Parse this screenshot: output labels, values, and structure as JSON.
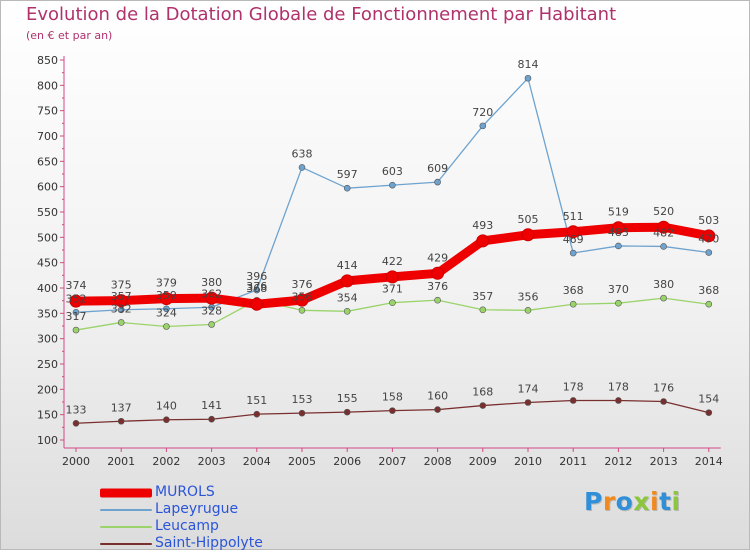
{
  "chart_data": {
    "type": "line",
    "title": "Evolution de la Dotation Globale de Fonctionnement par Habitant",
    "subtitle": "(en € et par an)",
    "xlabel": "",
    "ylabel": "",
    "x": [
      "2000",
      "2001",
      "2002",
      "2003",
      "2004",
      "2005",
      "2006",
      "2007",
      "2008",
      "2009",
      "2010",
      "2011",
      "2012",
      "2013",
      "2014"
    ],
    "ylim": [
      100,
      850
    ],
    "yticks": [
      100,
      150,
      200,
      250,
      300,
      350,
      400,
      450,
      500,
      550,
      600,
      650,
      700,
      750,
      800,
      850
    ],
    "grid": false,
    "legend_position": "bottom-left",
    "series": [
      {
        "name": "MUROLS",
        "color": "#ee0000",
        "values": [
          374,
          375,
          379,
          380,
          368,
          376,
          414,
          422,
          429,
          493,
          505,
          511,
          519,
          520,
          503
        ]
      },
      {
        "name": "Lapeyrugue",
        "color": "#6ea3cf",
        "values": [
          352,
          357,
          359,
          362,
          396,
          638,
          597,
          603,
          609,
          720,
          814,
          469,
          483,
          482,
          470
        ]
      },
      {
        "name": "Leucamp",
        "color": "#9ad36a",
        "values": [
          317,
          332,
          324,
          328,
          376,
          356,
          354,
          371,
          376,
          357,
          356,
          368,
          370,
          380,
          368
        ]
      },
      {
        "name": "Saint-Hippolyte",
        "color": "#7a2f2f",
        "values": [
          133,
          137,
          140,
          141,
          151,
          153,
          155,
          158,
          160,
          168,
          174,
          178,
          178,
          176,
          154
        ]
      }
    ]
  },
  "branding": {
    "letters": [
      "P",
      "r",
      "o",
      "x",
      "i",
      "t",
      "i"
    ],
    "colors": [
      "#2f8fd8",
      "#f08a1e",
      "#2f8fd8",
      "#8cc63f",
      "#f08a1e",
      "#2f8fd8",
      "#8cc63f"
    ]
  }
}
